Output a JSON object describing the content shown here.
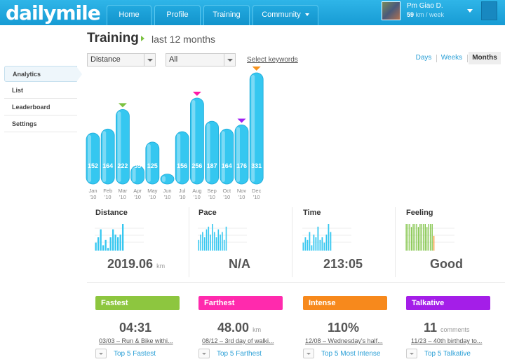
{
  "brand": {
    "logo": "dailymile"
  },
  "nav": {
    "tabs": [
      {
        "label": "Home"
      },
      {
        "label": "Profile"
      },
      {
        "label": "Training"
      },
      {
        "label": "Community"
      }
    ]
  },
  "user": {
    "name": "Pm Giao D.",
    "km": "59",
    "unit": "km / week"
  },
  "page": {
    "title": "Training",
    "subtitle": "last 12 months"
  },
  "filters": {
    "metric": "Distance",
    "scope": "All",
    "keywords_link": "Select keywords"
  },
  "periods": [
    {
      "label": "Days",
      "active": false
    },
    {
      "label": "Weeks",
      "active": false
    },
    {
      "label": "Months",
      "active": true
    }
  ],
  "sidebar": {
    "items": [
      {
        "label": "Analytics",
        "active": true
      },
      {
        "label": "List",
        "active": false
      },
      {
        "label": "Leaderboard",
        "active": false
      },
      {
        "label": "Settings",
        "active": false
      }
    ]
  },
  "chart_data": {
    "type": "bar",
    "categories": [
      "Jan",
      "Feb",
      "Mar",
      "Apr",
      "May",
      "Jun",
      "Jul",
      "Aug",
      "Sep",
      "Oct",
      "Nov",
      "Dec"
    ],
    "year_labels": [
      "'10",
      "'10",
      "'10",
      "'10",
      "'10",
      "'10",
      "'10",
      "'10",
      "'10",
      "'10",
      "'10",
      "'10"
    ],
    "values": [
      152,
      164,
      222,
      55,
      125,
      30,
      156,
      256,
      187,
      164,
      176,
      331
    ],
    "markers": [
      {
        "index": 2,
        "color": "#7cc241"
      },
      {
        "index": 7,
        "color": "#ff1ca8"
      },
      {
        "index": 10,
        "color": "#a020f0"
      },
      {
        "index": 11,
        "color": "#f7931e"
      }
    ],
    "bar_color": "#35c7f0",
    "ylim": [
      0,
      331
    ]
  },
  "stats": [
    {
      "title": "Distance",
      "value": "2019.06",
      "unit": "km",
      "spark": [
        3,
        5,
        8,
        2,
        4,
        1,
        5,
        8,
        6,
        5,
        6,
        10
      ],
      "spark_color": "#35c7f0"
    },
    {
      "title": "Pace",
      "value": "N/A",
      "unit": "",
      "spark": [
        4,
        6,
        7,
        5,
        8,
        9,
        6,
        10,
        7,
        5,
        8,
        6,
        7,
        4,
        9
      ],
      "spark_color": "#35c7f0"
    },
    {
      "title": "Time",
      "value": "213:05",
      "unit": "",
      "spark": [
        3,
        5,
        4,
        7,
        2,
        6,
        5,
        9,
        4,
        5,
        3,
        6,
        10,
        7
      ],
      "spark_color": "#35c7f0"
    },
    {
      "title": "Feeling",
      "value": "Good",
      "unit": "",
      "spark": [
        9,
        9,
        9,
        8,
        9,
        9,
        9,
        8,
        9,
        9,
        9,
        9,
        8,
        9,
        9,
        9,
        5
      ],
      "spark_color": "#7cc241"
    }
  ],
  "records": [
    {
      "badge": "Fastest",
      "color": "#8dc63f",
      "value": "04:31",
      "unit": "",
      "desc": "03/03 – Run & Bike withi...",
      "top5": "Top 5 Fastest"
    },
    {
      "badge": "Farthest",
      "color": "#ff2aad",
      "value": "48.00",
      "unit": "km",
      "desc": "08/12 – 3rd day of walki...",
      "top5": "Top 5 Farthest"
    },
    {
      "badge": "Intense",
      "color": "#f7891c",
      "value": "110%",
      "unit": "",
      "desc": "12/08 – Wednesday's half...",
      "top5": "Top 5 Most Intense"
    },
    {
      "badge": "Talkative",
      "color": "#a41ee8",
      "value": "11",
      "unit": "comments",
      "desc": "11/23 – 40th birthday to...",
      "top5": "Top 5 Talkative"
    }
  ]
}
